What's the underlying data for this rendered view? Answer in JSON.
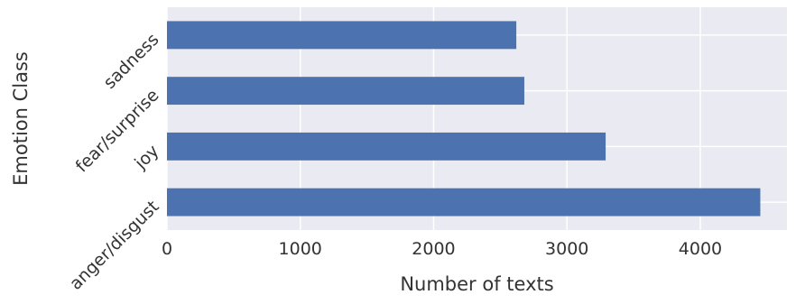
{
  "chart_data": {
    "type": "bar",
    "orientation": "horizontal",
    "categories": [
      "anger/disgust",
      "joy",
      "fear/surprise",
      "sadness"
    ],
    "values": [
      4450,
      3290,
      2680,
      2620
    ],
    "xlabel": "Number of texts",
    "ylabel": "Emotion Class",
    "xlim": [
      0,
      4650
    ],
    "xticks": [
      0,
      1000,
      2000,
      3000,
      4000
    ],
    "xtick_labels": [
      "0",
      "1000",
      "2000",
      "3000",
      "4000"
    ],
    "grid": true,
    "legend": "none",
    "colors": {
      "bar": "#4c72b0",
      "background": "#eaeaf2",
      "grid": "#ffffff",
      "text": "#333333"
    }
  }
}
